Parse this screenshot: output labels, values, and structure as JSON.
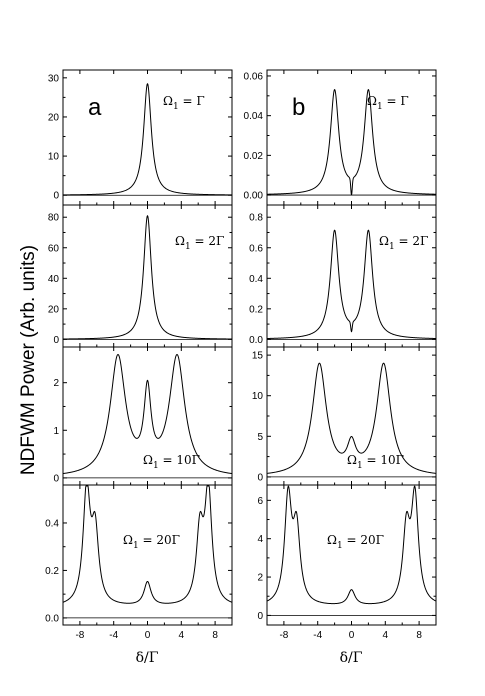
{
  "figure": {
    "ylabel": "NDFWM Power (Arb. units)",
    "xlabel": "δ/Γ"
  },
  "chart_data": [
    {
      "id": "a1",
      "type": "line",
      "column": "a",
      "row": 0,
      "letter": "a",
      "label_main": "Ω",
      "label_sub": "1",
      "label_rest": " = Γ",
      "xlim": [
        -10,
        10
      ],
      "ylim": [
        -2.5,
        32
      ],
      "yticks": [
        0,
        10,
        20,
        30
      ],
      "xticks": [
        -8,
        -4,
        0,
        4,
        8
      ],
      "peaks": [
        {
          "x": 0,
          "y": 28.5,
          "w": 0.55
        }
      ],
      "baseline": 0,
      "dip": null
    },
    {
      "id": "a2",
      "type": "line",
      "column": "a",
      "row": 1,
      "letter": "",
      "label_main": "Ω",
      "label_sub": "1",
      "label_rest": " = 2Γ",
      "xlim": [
        -10,
        10
      ],
      "ylim": [
        -5,
        88
      ],
      "yticks": [
        0,
        20,
        40,
        60,
        80
      ],
      "xticks": [
        -8,
        -4,
        0,
        4,
        8
      ],
      "peaks": [
        {
          "x": 0,
          "y": 81,
          "w": 0.55
        }
      ],
      "baseline": 0,
      "dip": null
    },
    {
      "id": "a3",
      "type": "line",
      "column": "a",
      "row": 2,
      "letter": "",
      "label_main": "Ω",
      "label_sub": "1",
      "label_rest": " = 10Γ",
      "xlim": [
        -10,
        10
      ],
      "ylim": [
        -0.15,
        2.75
      ],
      "yticks": [
        0,
        1,
        2
      ],
      "xticks": [
        -8,
        -4,
        0,
        4,
        8
      ],
      "peaks": [
        {
          "x": -3.5,
          "y": 2.5,
          "w": 1.1
        },
        {
          "x": 3.5,
          "y": 2.5,
          "w": 1.1
        },
        {
          "x": 0,
          "y": 1.6,
          "w": 0.5
        }
      ],
      "baseline": 0,
      "dip": null
    },
    {
      "id": "a4",
      "type": "line",
      "column": "a",
      "row": 3,
      "letter": "",
      "label_main": "Ω",
      "label_sub": "1",
      "label_rest": " = 20Γ",
      "xlim": [
        -10,
        10
      ],
      "ylim": [
        -0.03,
        0.56
      ],
      "yticks": [
        0.0,
        0.2,
        0.4
      ],
      "xticks": [
        -8,
        -4,
        0,
        4,
        8
      ],
      "peaks": [
        {
          "x": -7.2,
          "y": 0.48,
          "w": 0.5
        },
        {
          "x": -6.2,
          "y": 0.3,
          "w": 0.5
        },
        {
          "x": 6.2,
          "y": 0.3,
          "w": 0.5
        },
        {
          "x": 7.2,
          "y": 0.48,
          "w": 0.5
        },
        {
          "x": 0,
          "y": 0.1,
          "w": 0.5
        }
      ],
      "baseline": 0.045,
      "dip": null
    },
    {
      "id": "b1",
      "type": "line",
      "column": "b",
      "row": 0,
      "letter": "b",
      "label_main": "Ω",
      "label_sub": "1",
      "label_rest": " = Γ",
      "xlim": [
        -10,
        10
      ],
      "ylim": [
        -0.005,
        0.063
      ],
      "yticks": [
        0.0,
        0.02,
        0.04,
        0.06
      ],
      "xticks": [
        -8,
        -4,
        0,
        4,
        8
      ],
      "peaks": [
        {
          "x": -2,
          "y": 0.052,
          "w": 0.6
        },
        {
          "x": 2,
          "y": 0.052,
          "w": 0.6
        }
      ],
      "baseline": 0,
      "dip": {
        "y": 0.0,
        "floor": 0.0
      }
    },
    {
      "id": "b2",
      "type": "line",
      "column": "b",
      "row": 1,
      "letter": "",
      "label_main": "Ω",
      "label_sub": "1",
      "label_rest": " = 2Γ",
      "xlim": [
        -10,
        10
      ],
      "ylim": [
        -0.05,
        0.88
      ],
      "yticks": [
        0.0,
        0.2,
        0.4,
        0.6,
        0.8
      ],
      "xticks": [
        -8,
        -4,
        0,
        4,
        8
      ],
      "peaks": [
        {
          "x": -2,
          "y": 0.7,
          "w": 0.6
        },
        {
          "x": 2,
          "y": 0.7,
          "w": 0.6
        }
      ],
      "baseline": 0,
      "dip": {
        "y": 0.0,
        "floor": 0.05
      }
    },
    {
      "id": "b3",
      "type": "line",
      "column": "b",
      "row": 2,
      "letter": "",
      "label_main": "Ω",
      "label_sub": "1",
      "label_rest": " = 10Γ",
      "xlim": [
        -10,
        10
      ],
      "ylim": [
        -1,
        16
      ],
      "yticks": [
        0,
        5,
        10,
        15
      ],
      "xticks": [
        -8,
        -4,
        0,
        4,
        8
      ],
      "peaks": [
        {
          "x": -3.8,
          "y": 13.7,
          "w": 1.0
        },
        {
          "x": 3.8,
          "y": 13.7,
          "w": 1.0
        },
        {
          "x": 0,
          "y": 3.2,
          "w": 0.6
        }
      ],
      "baseline": 0,
      "dip": null
    },
    {
      "id": "b4",
      "type": "line",
      "column": "b",
      "row": 3,
      "letter": "",
      "label_main": "Ω",
      "label_sub": "1",
      "label_rest": " = 20Γ",
      "xlim": [
        -10,
        10
      ],
      "ylim": [
        -0.5,
        6.8
      ],
      "yticks": [
        0,
        2,
        4,
        6
      ],
      "xticks": [
        -8,
        -4,
        0,
        4,
        8
      ],
      "peaks": [
        {
          "x": -7.5,
          "y": 5.5,
          "w": 0.5
        },
        {
          "x": -6.5,
          "y": 3.8,
          "w": 0.5
        },
        {
          "x": 6.5,
          "y": 3.8,
          "w": 0.5
        },
        {
          "x": 7.5,
          "y": 5.5,
          "w": 0.5
        },
        {
          "x": 0,
          "y": 0.8,
          "w": 0.5
        }
      ],
      "baseline": 0.45,
      "dip": null
    }
  ]
}
